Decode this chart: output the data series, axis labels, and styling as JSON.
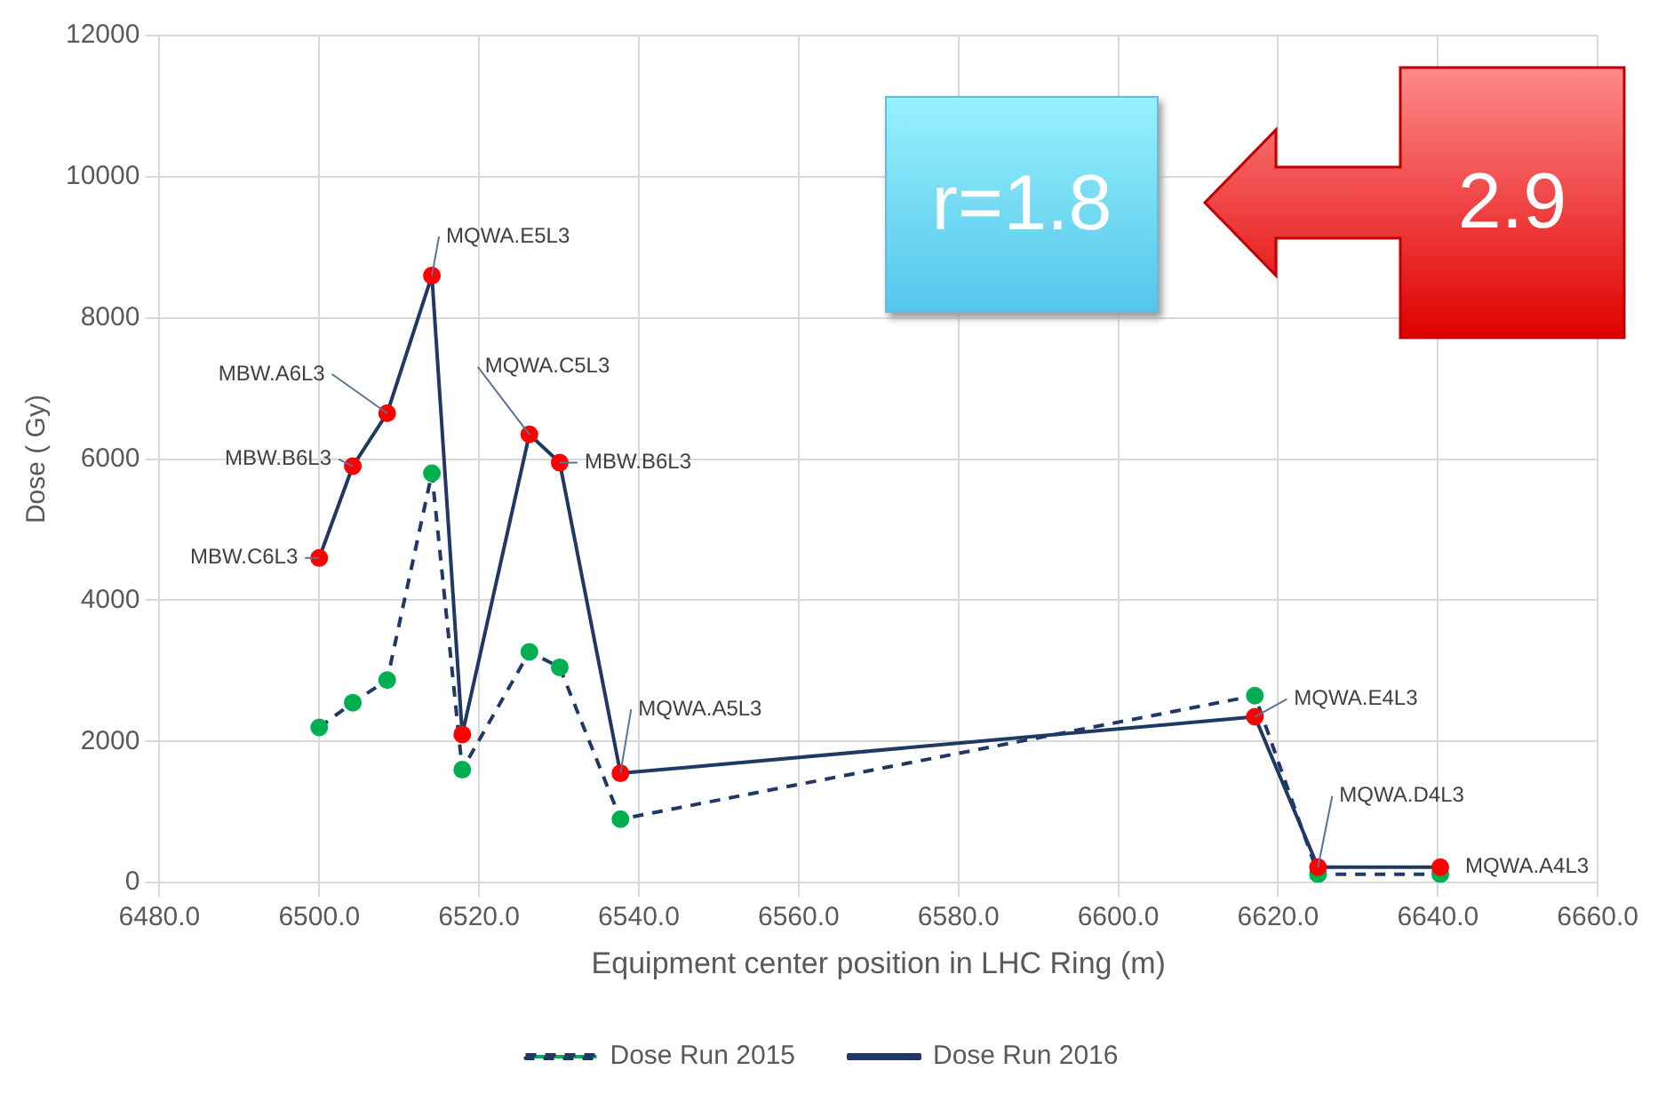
{
  "chart_data": {
    "type": "line",
    "xlabel": "Equipment center position in LHC Ring (m)",
    "ylabel": "Dose ( Gy)",
    "x": [
      6500,
      6504.2,
      6508.5,
      6514.1,
      6517.9,
      6526.3,
      6530.1,
      6537.7,
      6617.1,
      6625,
      6640.3
    ],
    "series": [
      {
        "name": "Dose Run 2015",
        "color": "#203864",
        "line_style": "dashed",
        "colors": [
          "#00b050",
          "#00b050",
          "#00b050",
          "#00b050",
          "#00b050",
          "#00b050",
          "#00b050",
          "#00b050",
          "#00b050",
          "#00b050",
          "#00b050"
        ],
        "values": [
          2200,
          2550,
          2870,
          5800,
          1600,
          3270,
          3050,
          900,
          2650,
          120,
          120
        ]
      },
      {
        "name": "Dose Run 2016",
        "color": "#203864",
        "line_style": "solid",
        "colors": [
          "#ff0000",
          "#ff0000",
          "#ff0000",
          "#ff0000",
          "#ff0000",
          "#ff0000",
          "#ff0000",
          "#ff0000",
          "#ff0000",
          "#ff0000",
          "#ff0000"
        ],
        "values": [
          4600,
          5900,
          6650,
          8600,
          2100,
          6350,
          5950,
          1550,
          2350,
          220,
          220
        ]
      }
    ],
    "xlim": [
      6480,
      6660
    ],
    "xticks": [
      {
        "value": 6480,
        "label": "6480.0"
      },
      {
        "value": 6500,
        "label": "6500.0"
      },
      {
        "value": 6520,
        "label": "6520.0"
      },
      {
        "value": 6540,
        "label": "6540.0"
      },
      {
        "value": 6560,
        "label": "6560.0"
      },
      {
        "value": 6580,
        "label": "6580.0"
      },
      {
        "value": 6600,
        "label": "6600.0"
      },
      {
        "value": 6620,
        "label": "6620.0"
      },
      {
        "value": 6640,
        "label": "6640.0"
      },
      {
        "value": 6660,
        "label": "6660.0"
      }
    ],
    "ylim": [
      0,
      12000
    ],
    "yticks": [
      0,
      2000,
      4000,
      6000,
      8000,
      10000,
      12000
    ],
    "grid": true,
    "legend": "bottom",
    "marker": "circle",
    "annotations": [
      {
        "text": "MBW.C6L3",
        "x": 6500,
        "y": 4600
      },
      {
        "text": "MBW.B6L3",
        "x": 6504.2,
        "y": 5900
      },
      {
        "text": "MBW.A6L3",
        "x": 6508.5,
        "y": 6650
      },
      {
        "text": "MQWA.E5L3",
        "x": 6514.1,
        "y": 8600
      },
      {
        "text": "MQWA.C5L3",
        "x": 6526.3,
        "y": 6350
      },
      {
        "text": "MBW.B6L3",
        "x": 6530.1,
        "y": 5950
      },
      {
        "text": "MQWA.A5L3",
        "x": 6537.7,
        "y": 1550
      },
      {
        "text": "MQWA.E4L3",
        "x": 6617.1,
        "y": 2350
      },
      {
        "text": "MQWA.D4L3",
        "x": 6625,
        "y": 220
      },
      {
        "text": "MQWA.A4L3",
        "x": 6640.3,
        "y": 220
      },
      "r=1.8",
      "2.9"
    ]
  }
}
